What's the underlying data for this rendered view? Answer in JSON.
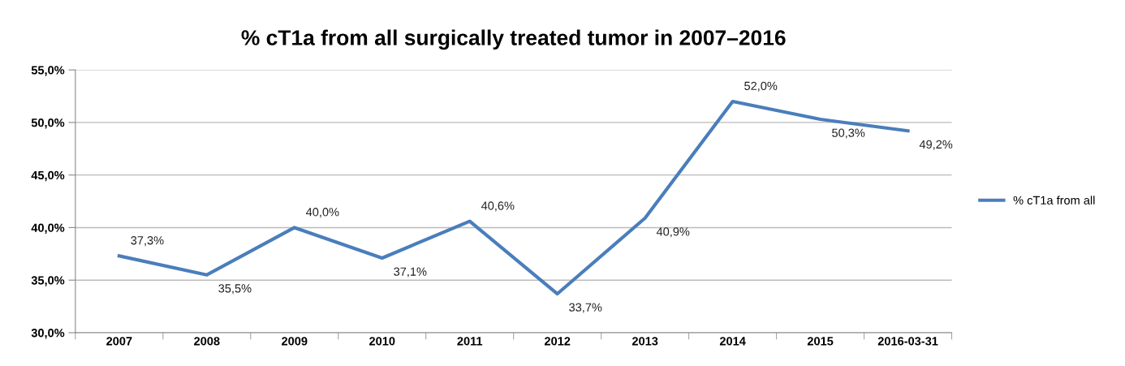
{
  "chart_data": {
    "type": "line",
    "title": "% cT1a from all surgically treated tumor in 2007–2016",
    "categories": [
      "2007",
      "2008",
      "2009",
      "2010",
      "2011",
      "2012",
      "2013",
      "2014",
      "2015",
      "2016-03-31"
    ],
    "series": [
      {
        "name": "% cT1a from all",
        "color": "#4a7ebb",
        "values": [
          37.3,
          35.5,
          40.0,
          37.1,
          40.6,
          33.7,
          40.9,
          52.0,
          50.3,
          49.2
        ],
        "value_labels": [
          "37,3%",
          "35,5%",
          "40,0%",
          "37,1%",
          "40,6%",
          "33,7%",
          "40,9%",
          "52,0%",
          "50,3%",
          "49,2%"
        ]
      }
    ],
    "ylim": [
      30,
      55
    ],
    "yticks": [
      {
        "value": 30,
        "label": "30,0%"
      },
      {
        "value": 35,
        "label": "35,0%"
      },
      {
        "value": 40,
        "label": "40,0%"
      },
      {
        "value": 45,
        "label": "45,0%"
      },
      {
        "value": 50,
        "label": "50,0%"
      },
      {
        "value": 55,
        "label": "55,0%"
      }
    ],
    "grid": "y",
    "legend": "right",
    "marker": "none",
    "line_style": "solid"
  }
}
